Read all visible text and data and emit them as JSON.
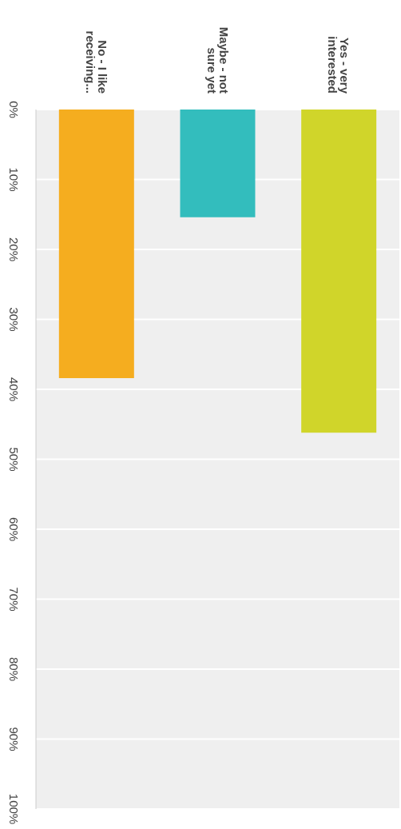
{
  "chart_data": {
    "type": "bar",
    "categories": [
      "No - I like receiving...",
      "Maybe - not sure yet",
      "Yes - very interested"
    ],
    "values": [
      38.4,
      15.4,
      46.2
    ],
    "colors": [
      "#f5ad1f",
      "#33bdbd",
      "#d0d52a"
    ],
    "ylim": [
      100,
      0
    ],
    "yticks": [
      {
        "value": 0,
        "label": "0%"
      },
      {
        "value": 10,
        "label": "10%"
      },
      {
        "value": 20,
        "label": "20%"
      },
      {
        "value": 30,
        "label": "30%"
      },
      {
        "value": 40,
        "label": "40%"
      },
      {
        "value": 50,
        "label": "50%"
      },
      {
        "value": 60,
        "label": "60%"
      },
      {
        "value": 70,
        "label": "70%"
      },
      {
        "value": 80,
        "label": "80%"
      },
      {
        "value": 90,
        "label": "90%"
      },
      {
        "value": 100,
        "label": "100%"
      }
    ],
    "grid": "y"
  }
}
